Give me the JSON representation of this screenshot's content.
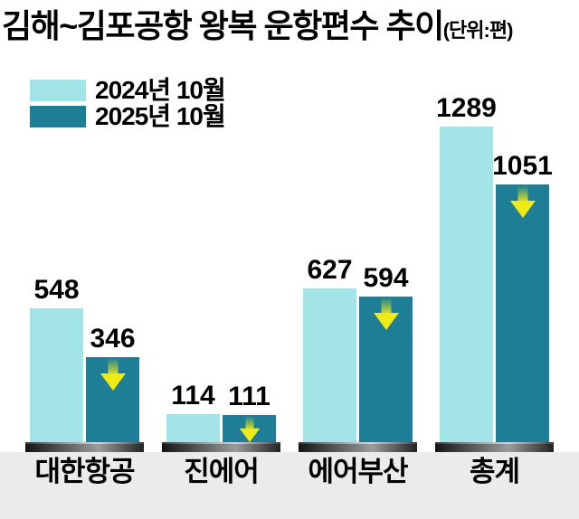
{
  "title": "김해~김포공항 왕복 운항편수 추이",
  "unit_label": "(단위:편)",
  "legend": [
    {
      "label": "2024년 10월",
      "color": "#a3e4e6"
    },
    {
      "label": "2025년 10월",
      "color": "#1d7e95"
    }
  ],
  "colors": {
    "bar_2024": "#a3e4e6",
    "bar_2025": "#1d7e95",
    "arrow_yellow": "#f0eb14",
    "axis_band": "#ebebeb",
    "pedestal_dark": "#141414",
    "pedestal_mid": "#9c9c9c",
    "pedestal_end": "#222222",
    "text": "#000000"
  },
  "icons": {
    "decrease_arrow": "yellow-down-arrow"
  },
  "chart_data": {
    "type": "bar",
    "categories": [
      "대한항공",
      "진에어",
      "에어부산",
      "총계"
    ],
    "series": [
      {
        "name": "2024년 10월",
        "values": [
          548,
          114,
          627,
          1289
        ]
      },
      {
        "name": "2025년 10월",
        "values": [
          346,
          111,
          594,
          1051
        ]
      }
    ],
    "title": "김해~김포공항 왕복 운항편수 추이",
    "unit": "편",
    "value_labels_shown": true,
    "decrease_arrow_on_series": "2025년 10월",
    "xlabel": "",
    "ylabel": "",
    "ylim": [
      0,
      1350
    ],
    "grid": false,
    "legend_position": "top-left"
  }
}
